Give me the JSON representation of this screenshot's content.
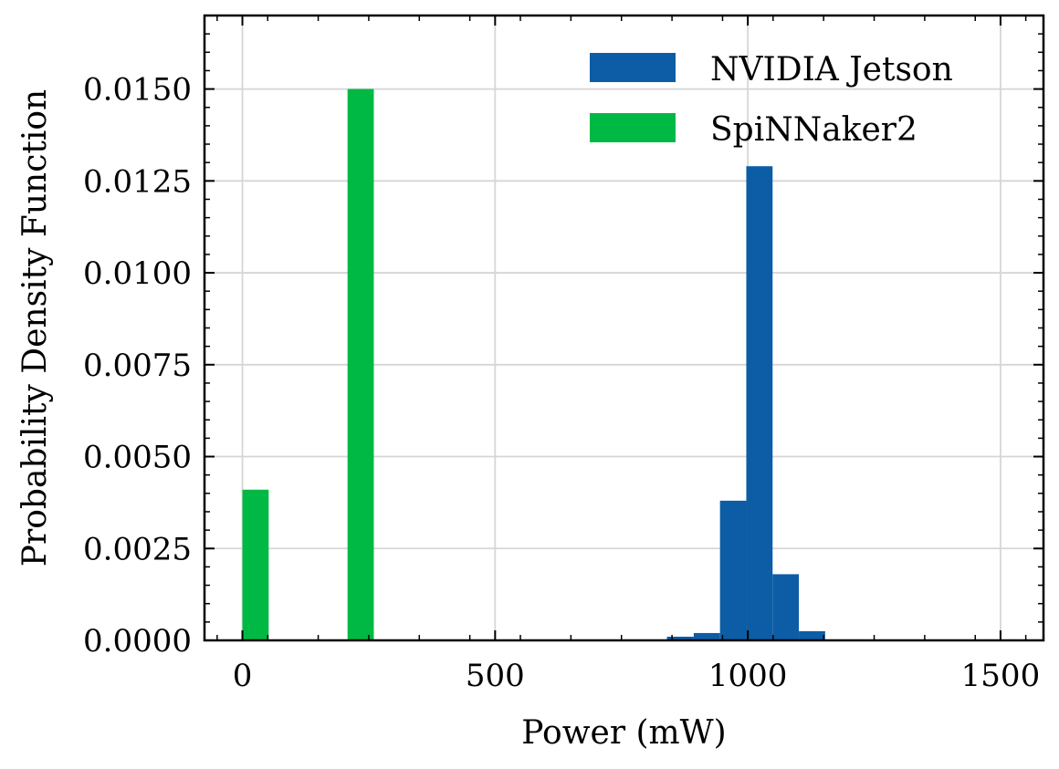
{
  "chart_data": {
    "type": "bar",
    "title": "",
    "xlabel": "Power (mW)",
    "ylabel": "Probability Density Function",
    "xlim": [
      -75,
      1585
    ],
    "ylim": [
      0,
      0.017
    ],
    "xticks": [
      0,
      500,
      1000,
      1500
    ],
    "xtick_labels": [
      "0",
      "500",
      "1000",
      "1500"
    ],
    "yticks": [
      0,
      0.0025,
      0.005,
      0.0075,
      0.01,
      0.0125,
      0.015
    ],
    "ytick_labels": [
      "0.0000",
      "0.0025",
      "0.0050",
      "0.0075",
      "0.0100",
      "0.0125",
      "0.0150"
    ],
    "grid": true,
    "legend_position": "top-right",
    "series": [
      {
        "name": "NVIDIA Jetson",
        "color": "#0C5DA5",
        "bins": [
          {
            "x0": 840,
            "x1": 893,
            "value": 0.0001
          },
          {
            "x0": 893,
            "x1": 945,
            "value": 0.0002
          },
          {
            "x0": 945,
            "x1": 997,
            "value": 0.0038
          },
          {
            "x0": 997,
            "x1": 1049,
            "value": 0.0129
          },
          {
            "x0": 1049,
            "x1": 1101,
            "value": 0.0018
          },
          {
            "x0": 1101,
            "x1": 1153,
            "value": 0.00025
          }
        ]
      },
      {
        "name": "SpiNNaker2",
        "color": "#00B945",
        "bins": [
          {
            "x0": 0,
            "x1": 52,
            "value": 0.0041
          },
          {
            "x0": 208,
            "x1": 260,
            "value": 0.015
          }
        ]
      }
    ]
  }
}
